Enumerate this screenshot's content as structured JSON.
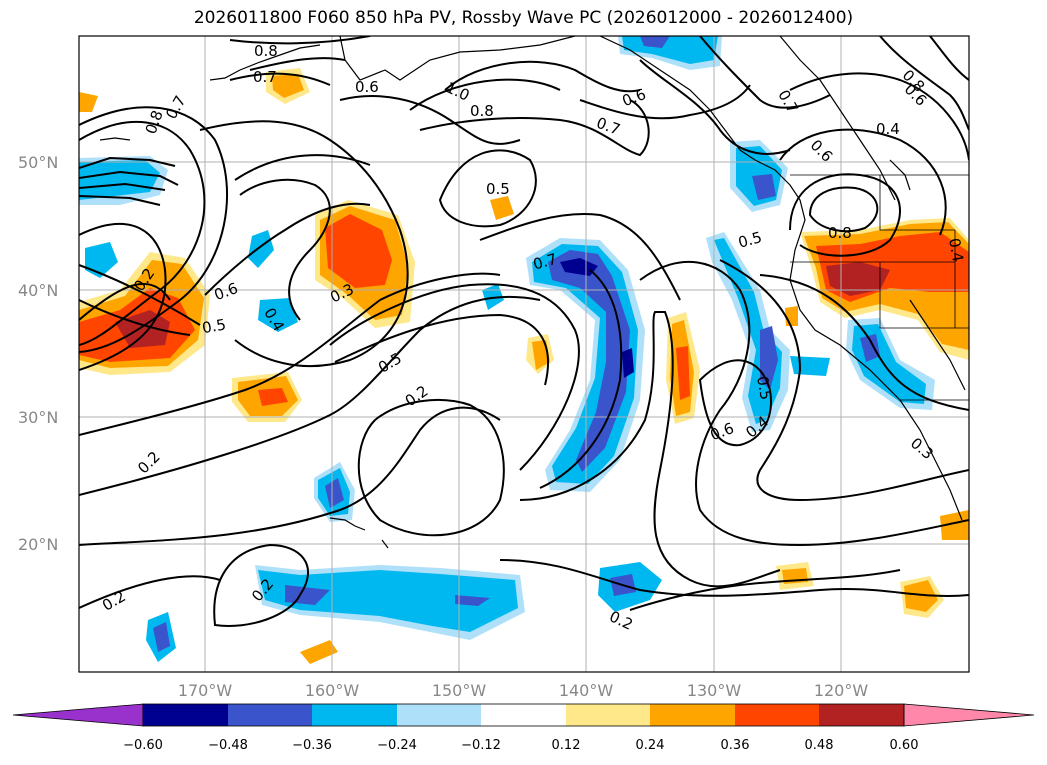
{
  "title": "2026011800 F060 850 hPa PV, Rossby Wave PC (2026012000 - 2026012400)",
  "lat_labels": [
    "50°N",
    "40°N",
    "30°N",
    "20°N"
  ],
  "lon_labels": [
    "170°W",
    "160°W",
    "150°W",
    "140°W",
    "130°W",
    "120°W"
  ],
  "contour_labels": [
    "0.8",
    "0.7",
    "0.7",
    "0.8",
    "0.6",
    "1.0",
    "0.8",
    "0.6",
    "0.7",
    "0.7",
    "0.6",
    "0.4",
    "0.8",
    "0.6",
    "0.5",
    "0.5",
    "0.8",
    "0.7",
    "0.4",
    "0.2",
    "0.6",
    "0.5",
    "0.4",
    "0.3",
    "0.5",
    "0.2",
    "0.2",
    "0.2",
    "0.2",
    "0.2",
    "0.5",
    "0.6",
    "0.4",
    "0.3"
  ],
  "colorbar": {
    "ticks": [
      "−0.60",
      "−0.48",
      "−0.36",
      "−0.24",
      "−0.12",
      "0.12",
      "0.24",
      "0.36",
      "0.48",
      "0.60"
    ],
    "colors": [
      "#9932cc",
      "#000090",
      "#3a55cc",
      "#00b8f0",
      "#aee0fa",
      "#ffffff",
      "#ffe88a",
      "#ffa500",
      "#ff4500",
      "#b22222",
      "#ff88aa"
    ]
  }
}
